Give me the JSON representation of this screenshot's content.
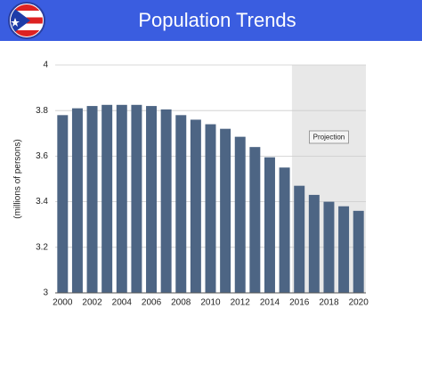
{
  "chart_data": {
    "type": "bar",
    "title": "Population Trends",
    "y_label": "(millions of persons)",
    "categories": [
      "2000",
      null,
      "2002",
      null,
      "2004",
      null,
      "2006",
      null,
      "2008",
      null,
      "2010",
      null,
      "2012",
      null,
      "2014",
      null,
      "2016",
      null,
      "2018",
      null,
      "2020"
    ],
    "values": [
      3.78,
      3.81,
      3.82,
      3.825,
      3.825,
      3.825,
      3.82,
      3.805,
      3.78,
      3.76,
      3.74,
      3.72,
      3.685,
      3.64,
      3.595,
      3.55,
      3.47,
      3.43,
      3.4,
      3.38,
      3.36
    ],
    "color": "#4d6584",
    "ylim": [
      3,
      4
    ],
    "yticks": [
      3,
      3.2,
      3.4,
      3.6,
      3.8,
      4
    ],
    "grid": true,
    "projection": {
      "text": "Projection",
      "from": "2016"
    }
  }
}
